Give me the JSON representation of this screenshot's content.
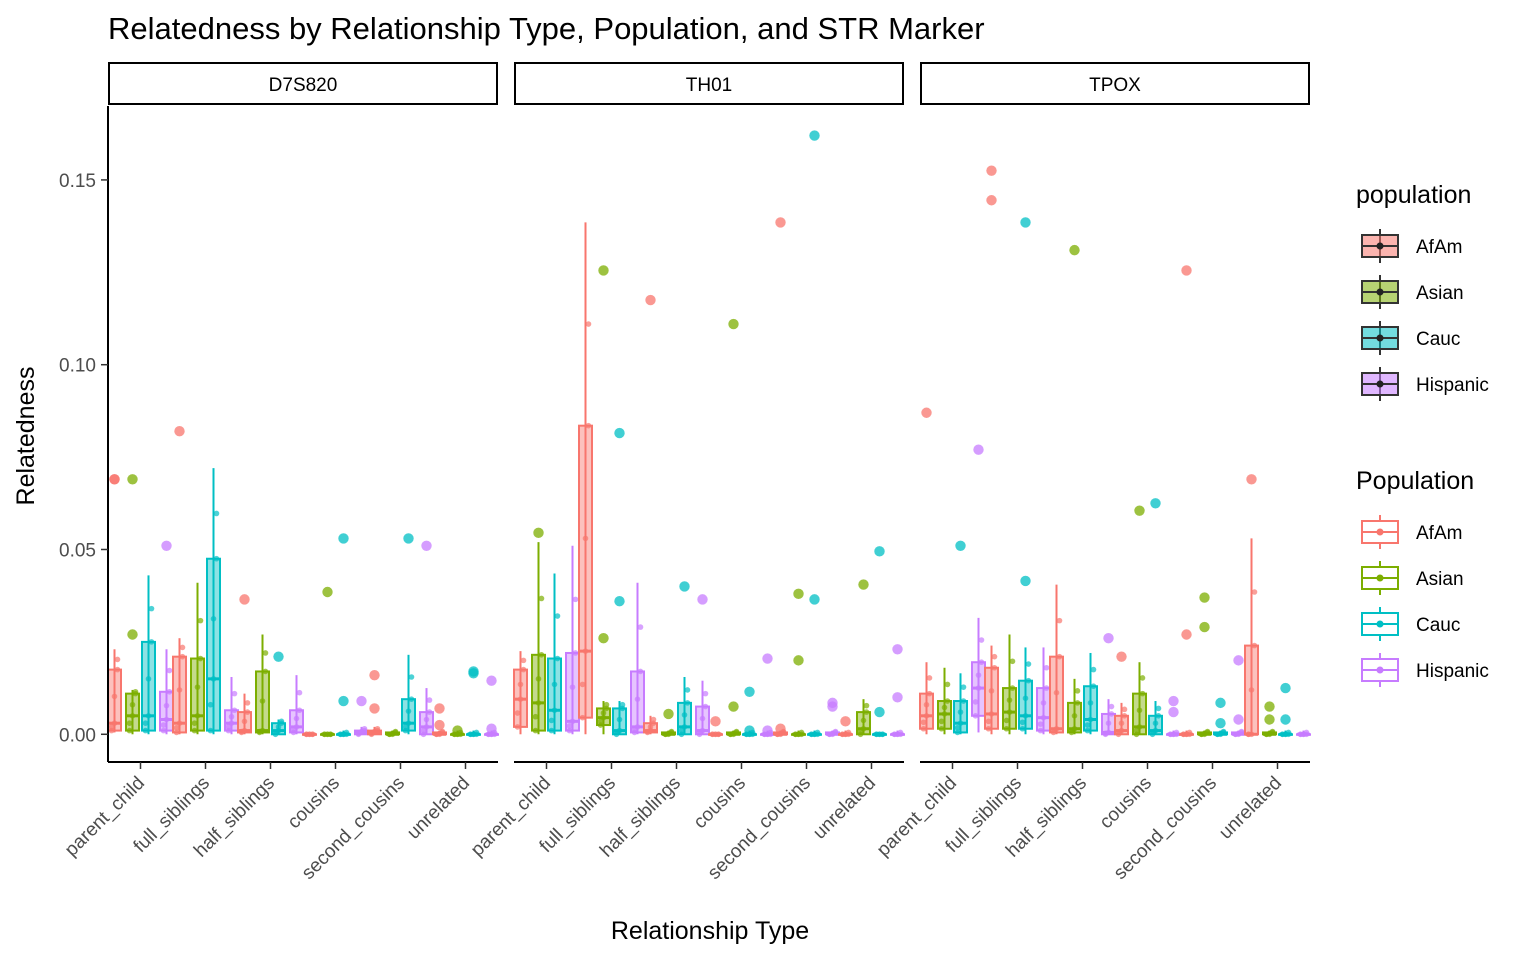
{
  "chart_data": {
    "type": "box",
    "title": "Relatedness by Relationship Type, Population, and STR Marker",
    "xlabel": "Relationship Type",
    "ylabel": "Relatedness",
    "ylim": [
      -0.0075,
      0.17
    ],
    "yticks": [
      0.0,
      0.05,
      0.1,
      0.15
    ],
    "ytick_labels": [
      "0.00",
      "0.05",
      "0.10",
      "0.15"
    ],
    "categories": [
      "parent_child",
      "full_siblings",
      "half_siblings",
      "cousins",
      "second_cousins",
      "unrelated"
    ],
    "populations": [
      "AfAm",
      "Asian",
      "Cauc",
      "Hispanic"
    ],
    "colors": {
      "AfAm": "#F8766D",
      "Asian": "#7CAE00",
      "Cauc": "#00BFC4",
      "Hispanic": "#C77CFF"
    },
    "legends": [
      {
        "title": "population",
        "kind": "fill",
        "entries": [
          "AfAm",
          "Asian",
          "Cauc",
          "Hispanic"
        ]
      },
      {
        "title": "Population",
        "kind": "colour",
        "entries": [
          "AfAm",
          "Asian",
          "Cauc",
          "Hispanic"
        ]
      }
    ],
    "facets": [
      {
        "label": "D7S820",
        "boxes": {
          "AfAm": [
            [
              0.0005,
              0.001,
              0.003,
              0.0175,
              0.023
            ],
            [
              0,
              0.0005,
              0.003,
              0.021,
              0.026
            ],
            [
              0,
              0.0005,
              0.001,
              0.006,
              0.011
            ],
            [
              0,
              0,
              0,
              0,
              0
            ],
            [
              0,
              0,
              0.0005,
              0.001,
              0.002
            ],
            [
              0,
              0,
              0,
              0.0005,
              0.001
            ]
          ],
          "Asian": [
            [
              0,
              0.001,
              0.005,
              0.011,
              0.012
            ],
            [
              0,
              0.001,
              0.005,
              0.0205,
              0.041
            ],
            [
              0,
              0.0005,
              0.001,
              0.017,
              0.027
            ],
            [
              0,
              0,
              0,
              0,
              0
            ],
            [
              0,
              0,
              0,
              0.0005,
              0.001
            ],
            [
              0,
              0,
              0,
              0,
              0.001
            ]
          ],
          "Cauc": [
            [
              0,
              0.001,
              0.005,
              0.025,
              0.043
            ],
            [
              0,
              0.001,
              0.015,
              0.0475,
              0.072
            ],
            [
              0,
              0,
              0.001,
              0.003,
              0.004
            ],
            [
              0,
              0,
              0,
              0,
              0.001
            ],
            [
              0,
              0.001,
              0.003,
              0.0095,
              0.0215
            ],
            [
              0,
              0,
              0,
              0,
              0.001
            ]
          ],
          "Hispanic": [
            [
              0,
              0.001,
              0.004,
              0.0115,
              0.023
            ],
            [
              0,
              0.001,
              0.003,
              0.0065,
              0.0155
            ],
            [
              0,
              0.0005,
              0.002,
              0.0065,
              0.016
            ],
            [
              0,
              0,
              0.0005,
              0.001,
              0.002
            ],
            [
              0,
              0,
              0.002,
              0.006,
              0.0125
            ],
            [
              0,
              0,
              0,
              0,
              0.001
            ]
          ]
        },
        "outliers": {
          "AfAm": [
            [
              0.069,
              0.069
            ],
            [
              0.082
            ],
            [
              0.0365
            ],
            [],
            [
              0.016,
              0.007
            ],
            [
              0.007,
              0.0025
            ]
          ],
          "Asian": [
            [
              0.069,
              0.027
            ],
            [],
            [],
            [
              0.0385
            ],
            [],
            [
              0.001
            ]
          ],
          "Cauc": [
            [],
            [],
            [
              0.021
            ],
            [
              0.053,
              0.009
            ],
            [
              0.053
            ],
            [
              0.0165,
              0.017
            ]
          ],
          "Hispanic": [
            [
              0.051
            ],
            [],
            [],
            [
              0.009
            ],
            [
              0.051
            ],
            [
              0.0145,
              0.0015
            ]
          ]
        }
      },
      {
        "label": "TH01",
        "boxes": {
          "AfAm": [
            [
              0,
              0.002,
              0.0095,
              0.0175,
              0.0225
            ],
            [
              0,
              0.0045,
              0.0225,
              0.0835,
              0.1385
            ],
            [
              0,
              0.0005,
              0.001,
              0.003,
              0.005
            ],
            [
              0,
              0,
              0,
              0,
              0
            ],
            [
              0,
              0,
              0,
              0.0005,
              0.001
            ],
            [
              0,
              0,
              0,
              0,
              0.001
            ]
          ],
          "Asian": [
            [
              0,
              0.001,
              0.0085,
              0.0215,
              0.052
            ],
            [
              0,
              0.0025,
              0.0045,
              0.007,
              0.009
            ],
            [
              0,
              0,
              0,
              0.0005,
              0.001
            ],
            [
              0,
              0,
              0,
              0.0005,
              0.001
            ],
            [
              0,
              0,
              0,
              0,
              0.001
            ],
            [
              0,
              0,
              0.0015,
              0.006,
              0.0095
            ]
          ],
          "Cauc": [
            [
              0,
              0.001,
              0.0065,
              0.0205,
              0.0435
            ],
            [
              0,
              0,
              0.001,
              0.007,
              0.009
            ],
            [
              0,
              0,
              0.002,
              0.0085,
              0.0155
            ],
            [
              0,
              0,
              0,
              0,
              0.001
            ],
            [
              0,
              0,
              0,
              0,
              0.001
            ],
            [
              0,
              0,
              0,
              0,
              0
            ]
          ],
          "Hispanic": [
            [
              0,
              0.001,
              0.0035,
              0.022,
              0.051
            ],
            [
              0,
              0.0005,
              0.002,
              0.017,
              0.041
            ],
            [
              0,
              0,
              0.001,
              0.0075,
              0.0145
            ],
            [
              0,
              0,
              0,
              0,
              0.001
            ],
            [
              0,
              0,
              0,
              0.0005,
              0.001
            ],
            [
              0,
              0,
              0,
              0,
              0.001
            ]
          ]
        },
        "outliers": {
          "AfAm": [
            [],
            [],
            [
              0.1175
            ],
            [
              0.0035
            ],
            [
              0.1385,
              0.0015
            ],
            [
              0.0035
            ]
          ],
          "Asian": [
            [
              0.0545
            ],
            [
              0.1255,
              0.026
            ],
            [
              0.0055
            ],
            [
              0.111,
              0.0075
            ],
            [
              0.038,
              0.02
            ],
            [
              0.0405
            ]
          ],
          "Cauc": [
            [],
            [
              0.0815,
              0.036
            ],
            [
              0.04
            ],
            [
              0.0115,
              0.001
            ],
            [
              0.162,
              0.0365
            ],
            [
              0.0495,
              0.006
            ]
          ],
          "Hispanic": [
            [],
            [],
            [
              0.0365
            ],
            [
              0.0205,
              0.001
            ],
            [
              0.0085,
              0.0075
            ],
            [
              0.023,
              0.01
            ]
          ]
        }
      },
      {
        "label": "TPOX",
        "boxes": {
          "AfAm": [
            [
              0,
              0.0015,
              0.005,
              0.011,
              0.0195
            ],
            [
              0,
              0.0015,
              0.0055,
              0.018,
              0.024
            ],
            [
              0,
              0.0005,
              0.0015,
              0.021,
              0.0405
            ],
            [
              0,
              0,
              0.001,
              0.005,
              0.0085
            ],
            [
              0,
              0,
              0,
              0,
              0.001
            ],
            [
              0,
              0,
              0,
              0.024,
              0.053
            ]
          ],
          "Asian": [
            [
              0,
              0.0015,
              0.0055,
              0.009,
              0.018
            ],
            [
              0,
              0.0015,
              0.006,
              0.0125,
              0.027
            ],
            [
              0,
              0.0005,
              0.0015,
              0.0085,
              0.015
            ],
            [
              0,
              0,
              0.002,
              0.011,
              0.0195
            ],
            [
              0,
              0,
              0,
              0.0005,
              0.001
            ],
            [
              0,
              0,
              0,
              0.0005,
              0.001
            ]
          ],
          "Cauc": [
            [
              0,
              0.0005,
              0.003,
              0.009,
              0.0165
            ],
            [
              0,
              0.0015,
              0.005,
              0.0145,
              0.0235
            ],
            [
              0,
              0.001,
              0.004,
              0.013,
              0.022
            ],
            [
              0,
              0,
              0.001,
              0.005,
              0.009
            ],
            [
              0,
              0,
              0,
              0.0005,
              0.001
            ],
            [
              0,
              0,
              0,
              0,
              0.001
            ]
          ],
          "Hispanic": [
            [
              0.0005,
              0.005,
              0.0125,
              0.0195,
              0.0315
            ],
            [
              0,
              0.001,
              0.0045,
              0.0125,
              0.0235
            ],
            [
              0,
              0,
              0.0005,
              0.0055,
              0.0095
            ],
            [
              0,
              0,
              0,
              0,
              0.001
            ],
            [
              0,
              0,
              0,
              0.0005,
              0.001
            ],
            [
              0,
              0,
              0,
              0,
              0.001
            ]
          ]
        },
        "outliers": {
          "AfAm": [
            [
              0.087
            ],
            [
              0.1525,
              0.1445
            ],
            [],
            [
              0.021
            ],
            [
              0.1255,
              0.027
            ],
            [
              0.069
            ]
          ],
          "Asian": [
            [],
            [],
            [
              0.131
            ],
            [
              0.0605
            ],
            [
              0.037,
              0.029
            ],
            [
              0.0075,
              0.004
            ]
          ],
          "Cauc": [
            [
              0.051
            ],
            [
              0.1385,
              0.0415
            ],
            [],
            [
              0.0625
            ],
            [
              0.0085,
              0.003
            ],
            [
              0.0125,
              0.004
            ]
          ],
          "Hispanic": [
            [
              0.077
            ],
            [],
            [
              0.026
            ],
            [
              0.009,
              0.006
            ],
            [
              0.02,
              0.004
            ],
            []
          ]
        }
      }
    ]
  }
}
